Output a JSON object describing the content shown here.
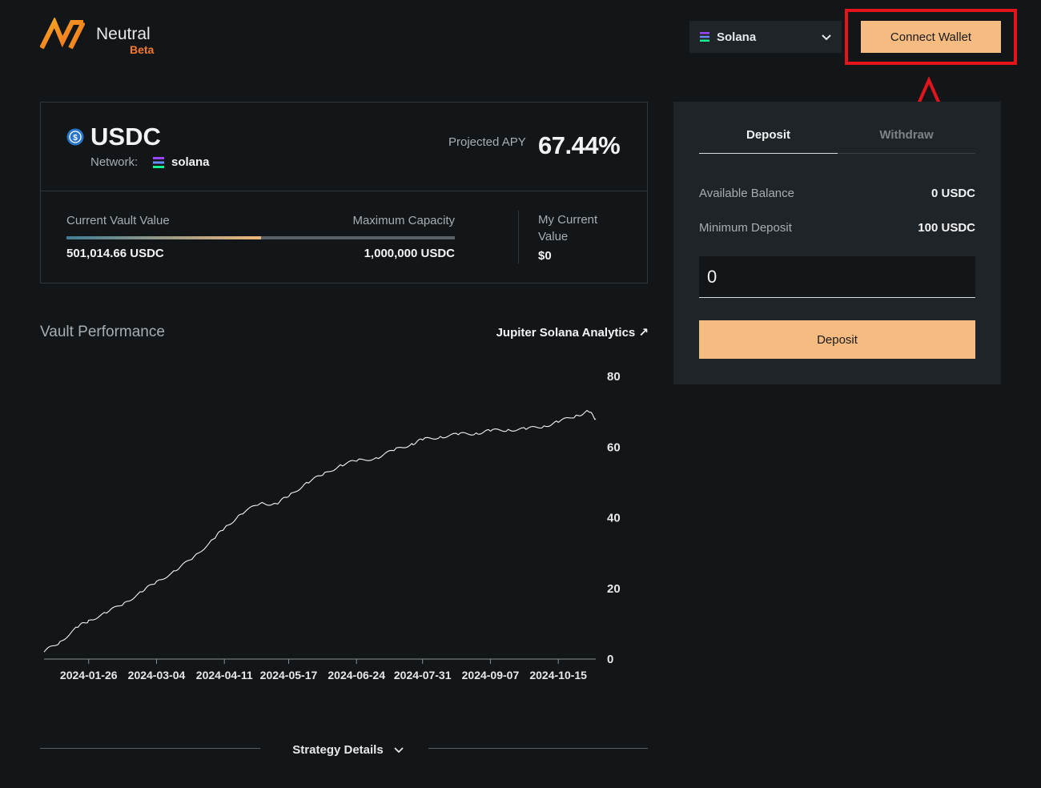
{
  "header": {
    "brand_name": "Neutral",
    "brand_badge": "Beta",
    "network_selector": {
      "selected": "Solana",
      "icon": "solana-icon"
    },
    "connect_wallet_label": "Connect Wallet"
  },
  "vault": {
    "token": "USDC",
    "network_label": "Network:",
    "network_value": "solana",
    "apy_label": "Projected APY",
    "apy_value": "67.44%",
    "current_value_label": "Current Vault Value",
    "current_value": "501,014.66 USDC",
    "max_capacity_label": "Maximum Capacity",
    "max_capacity": "1,000,000 USDC",
    "capacity_fraction": 0.501,
    "my_value_label": "My Current Value",
    "my_value": "$0"
  },
  "performance": {
    "title": "Vault Performance",
    "analytics_link": "Jupiter Solana Analytics ↗"
  },
  "chart_data": {
    "type": "line",
    "title": "",
    "xlabel": "",
    "ylabel": "",
    "ylim": [
      0,
      80
    ],
    "yticks": [
      0,
      20,
      40,
      60,
      80
    ],
    "xticks": [
      "2024-01-26",
      "2024-03-04",
      "2024-04-11",
      "2024-05-17",
      "2024-06-24",
      "2024-07-31",
      "2024-09-07",
      "2024-10-15"
    ],
    "x_range": [
      "2024-01-01",
      "2024-11-05"
    ],
    "series": [
      {
        "x": [
          "2024-01-01",
          "2024-01-10",
          "2024-01-20",
          "2024-01-26",
          "2024-02-05",
          "2024-02-15",
          "2024-02-25",
          "2024-03-04",
          "2024-03-15",
          "2024-03-25",
          "2024-04-05",
          "2024-04-11",
          "2024-04-20",
          "2024-05-01",
          "2024-05-10",
          "2024-05-17",
          "2024-05-27",
          "2024-06-05",
          "2024-06-15",
          "2024-06-24",
          "2024-07-05",
          "2024-07-15",
          "2024-07-25",
          "2024-07-31",
          "2024-08-10",
          "2024-08-20",
          "2024-08-30",
          "2024-09-07",
          "2024-09-17",
          "2024-09-27",
          "2024-10-07",
          "2024-10-15",
          "2024-10-25",
          "2024-11-01",
          "2024-11-05"
        ],
        "y": [
          2,
          5,
          9,
          11,
          13,
          16,
          19,
          22,
          25,
          29,
          34,
          37,
          41,
          44,
          44,
          46,
          50,
          52,
          55,
          56,
          57,
          59,
          61,
          62,
          63,
          63.5,
          64,
          64.5,
          65,
          65,
          66,
          67,
          69,
          70,
          68
        ]
      }
    ],
    "grid": false
  },
  "strategy": {
    "label": "Strategy Details"
  },
  "panel": {
    "tabs": [
      {
        "label": "Deposit",
        "active": true
      },
      {
        "label": "Withdraw",
        "active": false
      }
    ],
    "available_balance_label": "Available Balance",
    "available_balance": "0 USDC",
    "min_deposit_label": "Minimum Deposit",
    "min_deposit": "100 USDC",
    "amount_value": "0",
    "deposit_button": "Deposit"
  },
  "colors": {
    "background": "#121619",
    "panel": "#1e2427",
    "accent": "#f5bb80",
    "brand_orange": "#f5782a",
    "highlight_red": "#e3141b"
  }
}
